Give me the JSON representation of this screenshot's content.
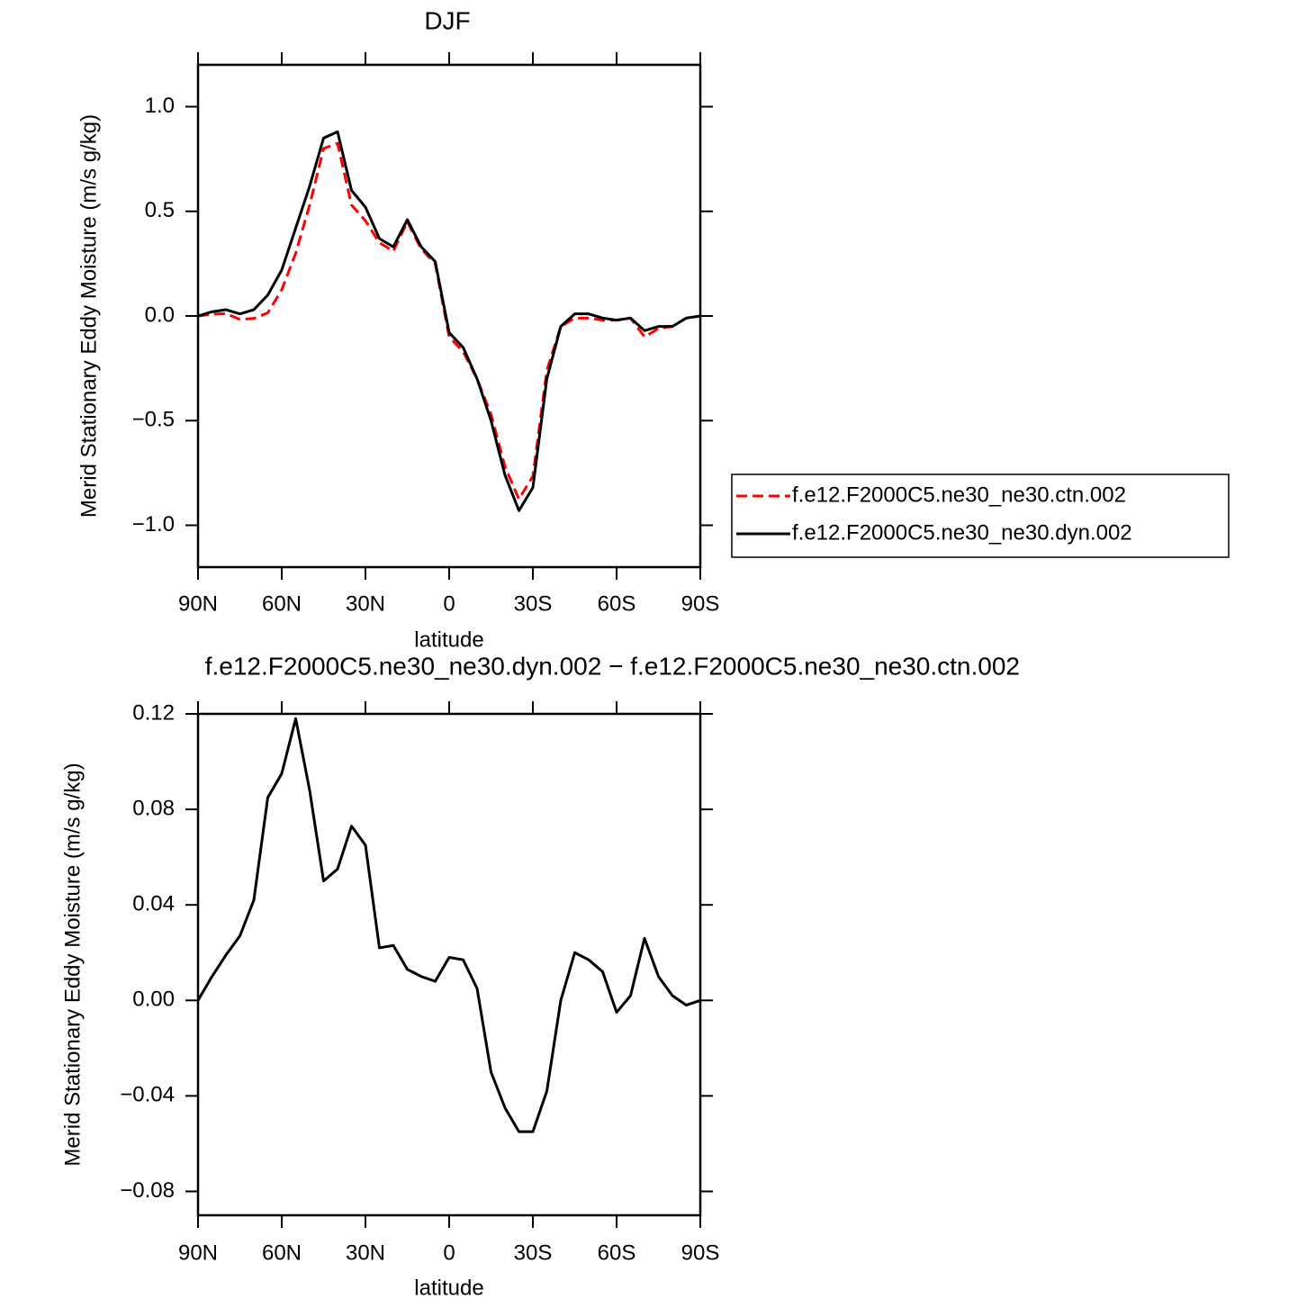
{
  "chart_data": [
    {
      "type": "line",
      "title": "DJF",
      "xlabel": "latitude",
      "ylabel": "Merid Stationary Eddy Moisture (m/s g/kg)",
      "x": [
        90,
        85,
        80,
        75,
        70,
        65,
        60,
        55,
        50,
        45,
        40,
        35,
        30,
        25,
        20,
        15,
        10,
        5,
        0,
        -5,
        -10,
        -15,
        -20,
        -25,
        -30,
        -35,
        -40,
        -45,
        -50,
        -55,
        -60,
        -65,
        -70,
        -75,
        -80,
        -85,
        -90
      ],
      "xlim": [
        90,
        -90
      ],
      "xticks": [
        {
          "value": 90,
          "label": "90N"
        },
        {
          "value": 60,
          "label": "60N"
        },
        {
          "value": 30,
          "label": "30N"
        },
        0,
        {
          "value": -30,
          "label": "30S"
        },
        {
          "value": -60,
          "label": "60S"
        },
        {
          "value": -90,
          "label": "90S"
        }
      ],
      "ylim": [
        -1.2,
        1.2
      ],
      "yticks": [
        {
          "value": 1.0,
          "label": "1.0"
        },
        {
          "value": 0.5,
          "label": "0.5"
        },
        {
          "value": 0.0,
          "label": "0.0"
        },
        {
          "value": -0.5,
          "label": "−0.5"
        },
        {
          "value": -1.0,
          "label": "−1.0"
        }
      ],
      "legend": "outside-right",
      "series": [
        {
          "name": "f.e12.F2000C5.ne30_ne30.ctn.002",
          "color": "#ff0000",
          "linestyle": "dashed",
          "values": [
            0,
            0.008,
            0.011,
            -0.016,
            -0.012,
            0.015,
            0.125,
            0.3,
            0.53,
            0.8,
            0.825,
            0.53,
            0.455,
            0.35,
            0.31,
            0.45,
            0.32,
            0.25,
            -0.1,
            -0.17,
            -0.3,
            -0.47,
            -0.72,
            -0.875,
            -0.765,
            -0.26,
            -0.05,
            -0.01,
            -0.01,
            -0.02,
            -0.02,
            -0.01,
            -0.1,
            -0.06,
            -0.05,
            -0.01,
            0
          ]
        },
        {
          "name": "f.e12.F2000C5.ne30_ne30.dyn.002",
          "color": "#000000",
          "linestyle": "solid",
          "values": [
            0,
            0.02,
            0.03,
            0.01,
            0.03,
            0.1,
            0.22,
            0.42,
            0.62,
            0.85,
            0.88,
            0.6,
            0.52,
            0.37,
            0.33,
            0.46,
            0.33,
            0.26,
            -0.08,
            -0.15,
            -0.3,
            -0.5,
            -0.76,
            -0.93,
            -0.82,
            -0.3,
            -0.05,
            0.01,
            0.01,
            -0.01,
            -0.02,
            -0.01,
            -0.07,
            -0.05,
            -0.05,
            -0.01,
            0
          ]
        }
      ]
    },
    {
      "type": "line",
      "title": "f.e12.F2000C5.ne30_ne30.dyn.002 − f.e12.F2000C5.ne30_ne30.ctn.002",
      "xlabel": "latitude",
      "ylabel": "Merid Stationary Eddy Moisture (m/s g/kg)",
      "x": [
        90,
        85,
        80,
        75,
        70,
        65,
        60,
        55,
        50,
        45,
        40,
        35,
        30,
        25,
        20,
        15,
        10,
        5,
        0,
        -5,
        -10,
        -15,
        -20,
        -25,
        -30,
        -35,
        -40,
        -45,
        -50,
        -55,
        -60,
        -65,
        -70,
        -75,
        -80,
        -85,
        -90
      ],
      "xlim": [
        90,
        -90
      ],
      "xticks": [
        {
          "value": 90,
          "label": "90N"
        },
        {
          "value": 60,
          "label": "60N"
        },
        {
          "value": 30,
          "label": "30N"
        },
        0,
        {
          "value": -30,
          "label": "30S"
        },
        {
          "value": -60,
          "label": "60S"
        },
        {
          "value": -90,
          "label": "90S"
        }
      ],
      "ylim": [
        -0.09,
        0.12
      ],
      "yticks": [
        0.12,
        0.08,
        0.04,
        {
          "value": 0.0,
          "label": "0.00"
        },
        {
          "value": -0.04,
          "label": "−0.04"
        },
        {
          "value": -0.08,
          "label": "−0.08"
        }
      ],
      "series": [
        {
          "color": "#000000",
          "linestyle": "solid",
          "values": [
            0,
            0.01,
            0.019,
            0.027,
            0.042,
            0.085,
            0.095,
            0.118,
            0.088,
            0.05,
            0.055,
            0.073,
            0.065,
            0.022,
            0.023,
            0.013,
            0.01,
            0.008,
            0.018,
            0.017,
            0.005,
            -0.03,
            -0.045,
            -0.055,
            -0.055,
            -0.038,
            0.0,
            0.02,
            0.017,
            0.012,
            -0.005,
            0.002,
            0.026,
            0.01,
            0.002,
            -0.002,
            0
          ]
        }
      ]
    }
  ]
}
